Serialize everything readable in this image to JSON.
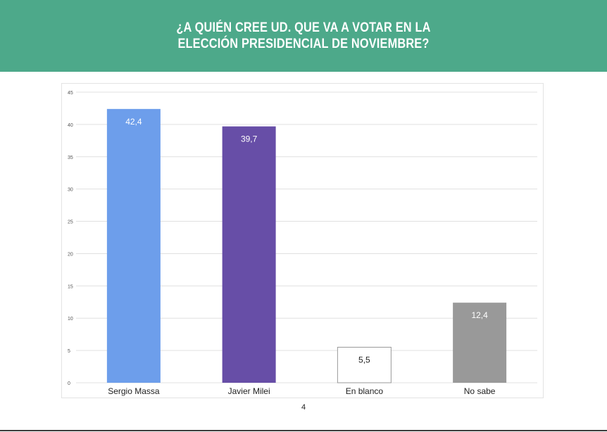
{
  "header": {
    "title": "¿A QUIÉN CREE UD. QUE VA A VOTAR EN LA ELECCIÓN PRESIDENCIAL DE NOVIEMBRE?"
  },
  "colors": {
    "header_bg": "#4da98a",
    "grid": "#e0e0e0",
    "axis_text": "#555555"
  },
  "chart_data": {
    "type": "bar",
    "categories": [
      "Sergio Massa",
      "Javier Milei",
      "En blanco",
      "No sabe"
    ],
    "values": [
      42.4,
      39.7,
      5.5,
      12.4
    ],
    "value_labels": [
      "42,4",
      "39,7",
      "5,5",
      "12,4"
    ],
    "bar_colors": [
      "#6d9eeb",
      "#674ea7",
      "#ffffff",
      "#999999"
    ],
    "label_colors": [
      "#ffffff",
      "#ffffff",
      "#222222",
      "#ffffff"
    ],
    "ylim": [
      0,
      45
    ],
    "yticks": [
      0,
      5,
      10,
      15,
      20,
      25,
      30,
      35,
      40,
      45
    ],
    "grid": true,
    "legend": "none"
  },
  "footer": {
    "page_number": "4"
  }
}
